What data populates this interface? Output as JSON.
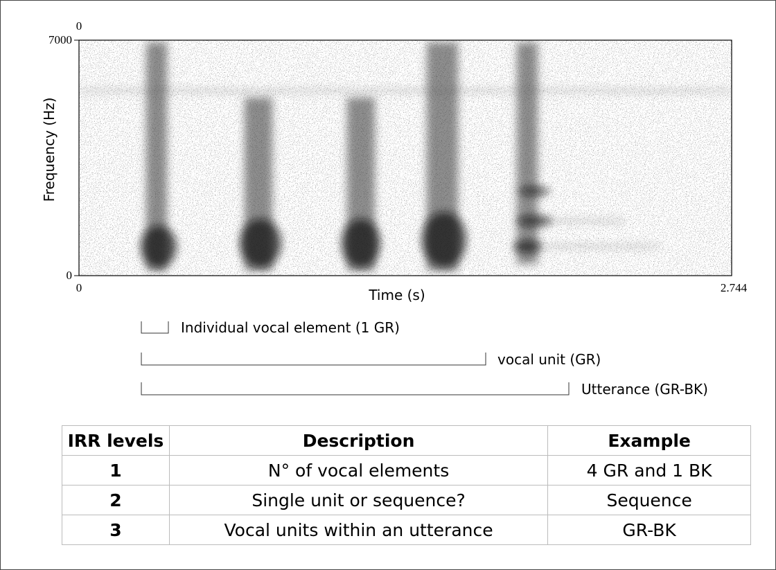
{
  "spectrogram": {
    "y_axis_title": "Frequency (Hz)",
    "x_axis_title": "Time (s)",
    "top_label": "0",
    "y_max_label": "7000",
    "y_min_label": "0",
    "x_min_label": "0",
    "x_max_label": "2.744"
  },
  "brackets": [
    {
      "label": "Individual vocal element (1 GR)"
    },
    {
      "label": "vocal unit (GR)"
    },
    {
      "label": "Utterance (GR-BK)"
    }
  ],
  "table": {
    "header": [
      "IRR levels",
      "Description",
      "Example"
    ],
    "rows": [
      [
        "1",
        "N° of vocal elements",
        "4 GR and 1 BK"
      ],
      [
        "2",
        "Single unit or sequence?",
        "Sequence"
      ],
      [
        "3",
        "Vocal units within an utterance",
        "GR-BK"
      ]
    ]
  }
}
